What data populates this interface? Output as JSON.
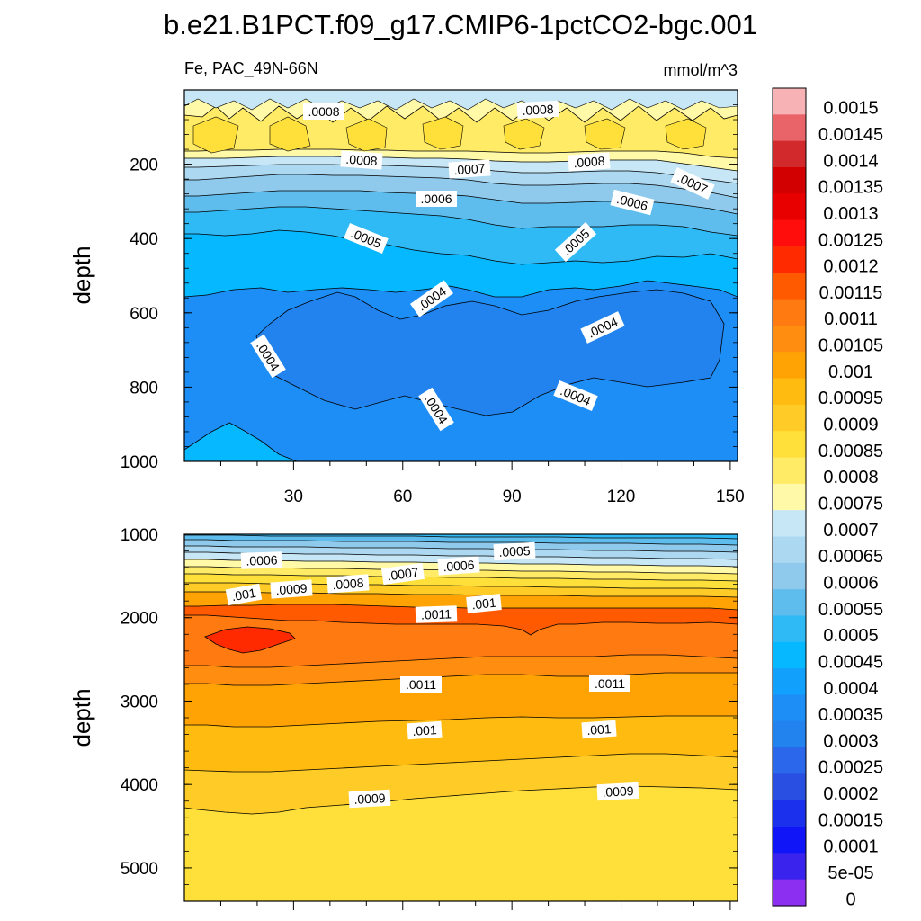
{
  "chart_data": {
    "type": "heatmap",
    "title": "b.e21.B1PCT.f09_g17.CMIP6-1pctCO2-bgc.001",
    "variable": "Fe, PAC_49N-66N",
    "units": "mmol/m^3",
    "colorbar": {
      "levels": [
        "0.0015",
        "0.00145",
        "0.0014",
        "0.00135",
        "0.0013",
        "0.00125",
        "0.0012",
        "0.00115",
        "0.0011",
        "0.00105",
        "0.001",
        "0.00095",
        "0.0009",
        "0.00085",
        "0.0008",
        "0.00075",
        "0.0007",
        "0.00065",
        "0.0006",
        "0.00055",
        "0.0005",
        "0.00045",
        "0.0004",
        "0.00035",
        "0.0003",
        "0.00025",
        "0.0002",
        "0.00015",
        "0.0001",
        "5e-05",
        "0"
      ],
      "colors": [
        "#f7b2b5",
        "#e86468",
        "#d22a2c",
        "#d20000",
        "#e80000",
        "#ff0d0d",
        "#ff2a00",
        "#ff5a00",
        "#ff7a10",
        "#ff8d0f",
        "#ffa305",
        "#ffbb10",
        "#ffcc27",
        "#ffe03a",
        "#ffeb66",
        "#fff9a8",
        "#c7e6f6",
        "#acd9f1",
        "#8fc9ec",
        "#5fbdee",
        "#30baf5",
        "#05b8ff",
        "#12a0fd",
        "#1d8ef6",
        "#2283ef",
        "#2a67ea",
        "#284fe2",
        "#1b30ec",
        "#0f15f6",
        "#3a23ec",
        "#8d2ff0"
      ]
    },
    "panels": [
      {
        "name": "upper",
        "ylabel": "depth",
        "yticks": [
          200,
          400,
          600,
          800,
          1000
        ],
        "ylim": [
          0,
          1000
        ],
        "xticks": [
          30,
          60,
          90,
          120,
          150
        ],
        "xlim": [
          0,
          152
        ],
        "contour_labels": [
          ".0008",
          ".0008",
          ".0008",
          ".0007",
          ".0008",
          ".0007",
          ".0006",
          ".0006",
          ".0005",
          ".0005",
          ".0004",
          ".0004",
          ".0004",
          ".0004",
          ".0004"
        ]
      },
      {
        "name": "lower",
        "ylabel": "depth",
        "yticks": [
          1000,
          2000,
          3000,
          4000,
          5000
        ],
        "ylim": [
          1000,
          5400
        ],
        "xlim": [
          0,
          152
        ],
        "contour_labels": [
          ".0006",
          ".0005",
          ".0007",
          ".0006",
          ".001",
          ".0009",
          ".0008",
          ".001",
          ".0011",
          ".0011",
          ".0011",
          ".001",
          ".001",
          ".0009",
          ".0009"
        ]
      }
    ]
  }
}
